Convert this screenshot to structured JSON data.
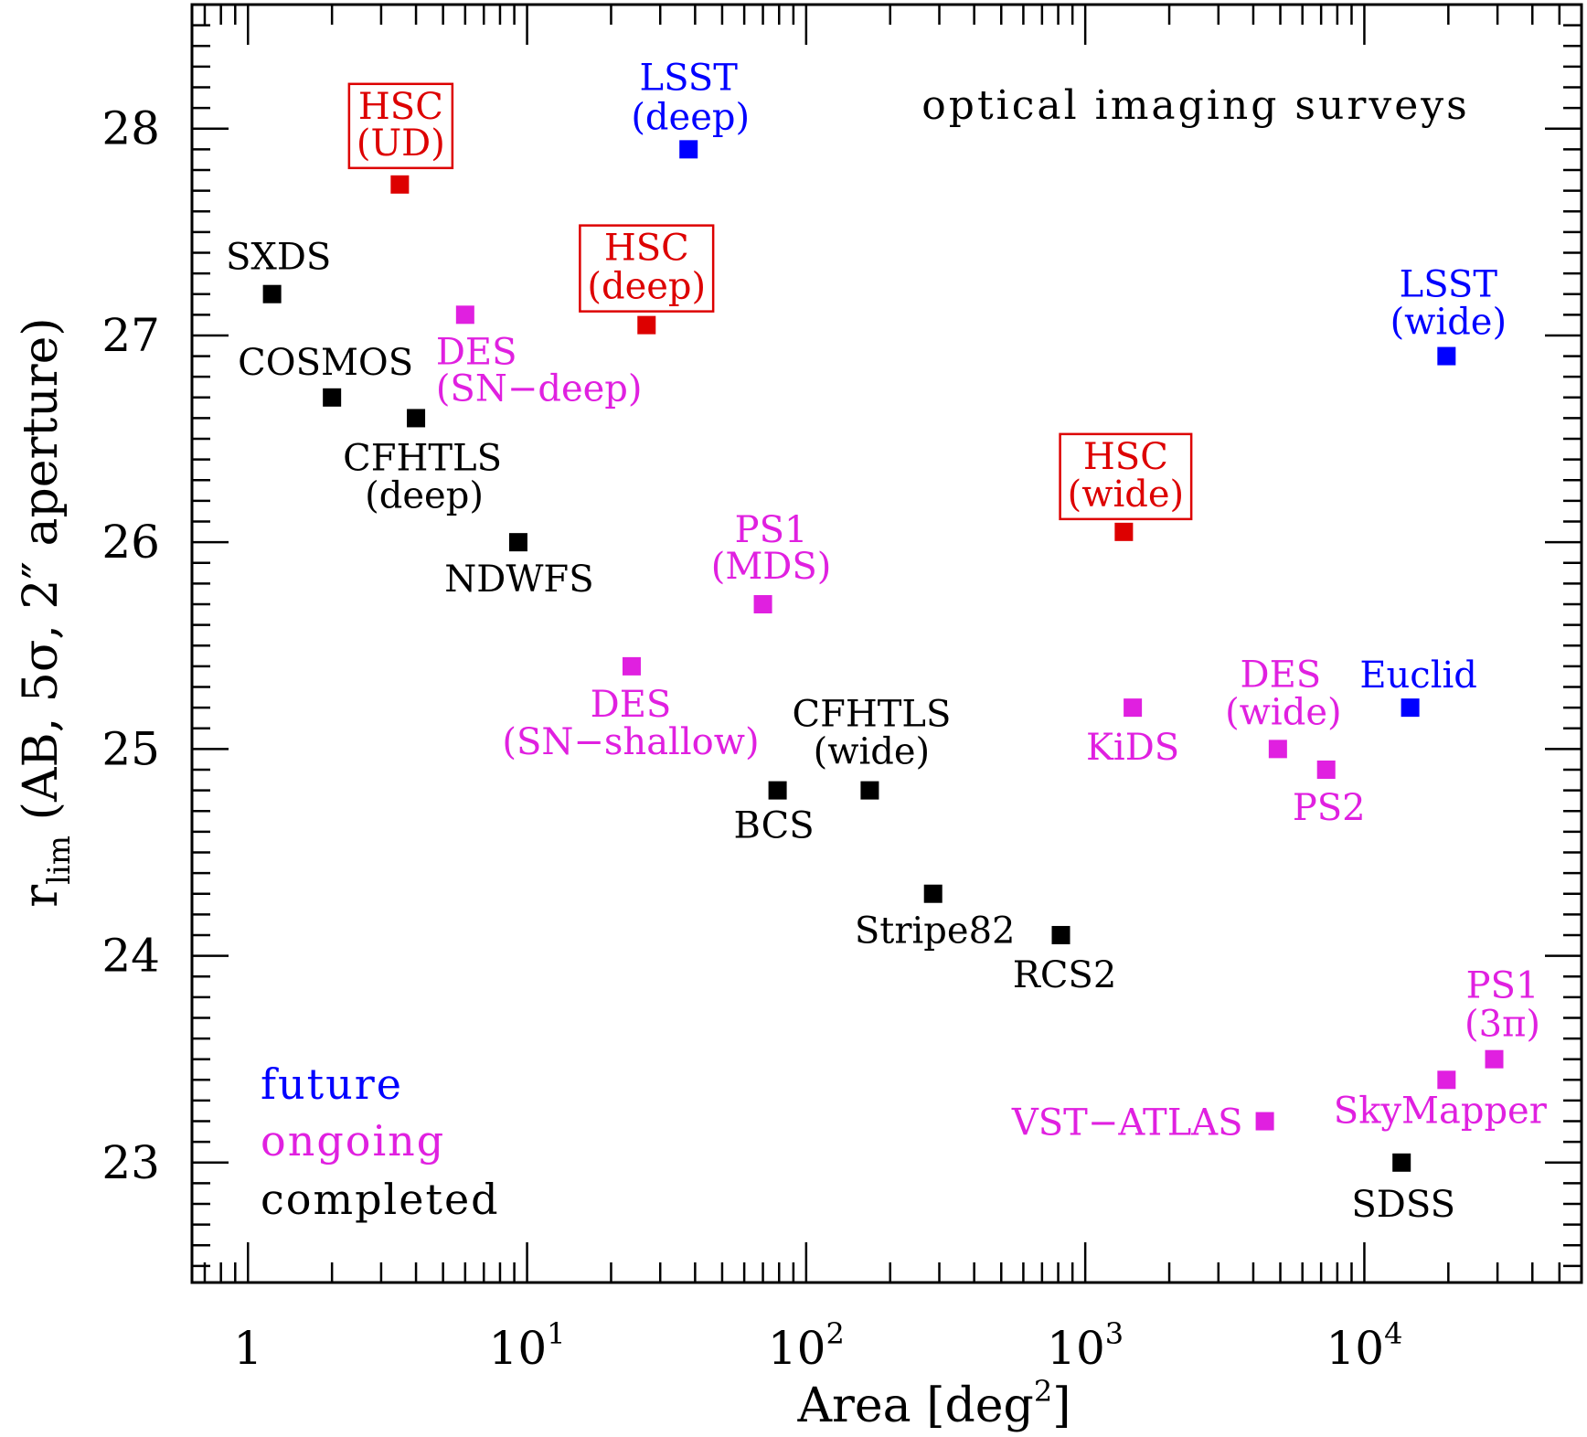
{
  "chart_data": {
    "type": "scatter",
    "title": "optical imaging surveys",
    "xlabel": "Area [deg²]",
    "xlabel_main": "Area [deg",
    "xlabel_sup": "2",
    "xlabel_end": "]",
    "ylabel": "r_lim (AB, 5σ, 2″ aperture)",
    "ylabel_r": "r",
    "ylabel_sub": "lim",
    "ylabel_rest": " (AB, 5σ, 2″ aperture)",
    "xscale": "log",
    "xlim": [
      0.63,
      60000
    ],
    "ylim": [
      22.42,
      28.6
    ],
    "xticks": [
      {
        "value": 1,
        "base": "1",
        "exp": ""
      },
      {
        "value": 10,
        "base": "10",
        "exp": "1"
      },
      {
        "value": 100,
        "base": "10",
        "exp": "2"
      },
      {
        "value": 1000,
        "base": "10",
        "exp": "3"
      },
      {
        "value": 10000,
        "base": "10",
        "exp": "4"
      }
    ],
    "yticks": [
      23,
      24,
      25,
      26,
      27,
      28
    ],
    "grid": false,
    "colors": {
      "future": "#0000ff",
      "ongoing": "#e020e0",
      "completed": "#000000",
      "hsc": "#dd0000"
    },
    "legend": {
      "placement": "bottom-left",
      "entries": [
        {
          "label": "future",
          "status": "future"
        },
        {
          "label": "ongoing",
          "status": "ongoing"
        },
        {
          "label": "completed",
          "status": "completed"
        }
      ]
    },
    "points": [
      {
        "label": [
          "SXDS"
        ],
        "x": 1.22,
        "y": 27.2,
        "status": "completed"
      },
      {
        "label": [
          "COSMOS"
        ],
        "x": 2.0,
        "y": 26.7,
        "status": "completed"
      },
      {
        "label": [
          "CFHTLS",
          "(deep)"
        ],
        "x": 4.0,
        "y": 26.6,
        "status": "completed"
      },
      {
        "label": [
          "NDWFS"
        ],
        "x": 9.3,
        "y": 26.0,
        "status": "completed"
      },
      {
        "label": [
          "BCS"
        ],
        "x": 79,
        "y": 24.8,
        "status": "completed"
      },
      {
        "label": [
          "CFHTLS",
          "(wide)"
        ],
        "x": 169,
        "y": 24.8,
        "status": "completed"
      },
      {
        "label": [
          "Stripe82"
        ],
        "x": 285,
        "y": 24.3,
        "status": "completed"
      },
      {
        "label": [
          "RCS2"
        ],
        "x": 818,
        "y": 24.1,
        "status": "completed"
      },
      {
        "label": [
          "SDSS"
        ],
        "x": 13600,
        "y": 23.0,
        "status": "completed"
      },
      {
        "label": [
          "DES",
          "(SN−deep)"
        ],
        "x": 6.0,
        "y": 27.1,
        "status": "ongoing"
      },
      {
        "label": [
          "DES",
          "(SN−shallow)"
        ],
        "x": 23.7,
        "y": 25.4,
        "status": "ongoing"
      },
      {
        "label": [
          "PS1",
          "(MDS)"
        ],
        "x": 70,
        "y": 25.7,
        "status": "ongoing"
      },
      {
        "label": [
          "KiDS"
        ],
        "x": 1480,
        "y": 25.2,
        "status": "ongoing"
      },
      {
        "label": [
          "DES",
          "(wide)"
        ],
        "x": 4900,
        "y": 25.0,
        "status": "ongoing"
      },
      {
        "label": [
          "PS2"
        ],
        "x": 7300,
        "y": 24.9,
        "status": "ongoing"
      },
      {
        "label": [
          "VST−ATLAS"
        ],
        "x": 4400,
        "y": 23.2,
        "status": "ongoing"
      },
      {
        "label": [
          "SkyMapper"
        ],
        "x": 19700,
        "y": 23.4,
        "status": "ongoing"
      },
      {
        "label": [
          "PS1",
          "(3π)"
        ],
        "x": 29200,
        "y": 23.5,
        "status": "ongoing"
      },
      {
        "label": [
          "HSC",
          "(UD)"
        ],
        "x": 3.5,
        "y": 27.73,
        "status": "hsc"
      },
      {
        "label": [
          "HSC",
          "(deep)"
        ],
        "x": 26.8,
        "y": 27.05,
        "status": "hsc"
      },
      {
        "label": [
          "HSC",
          "(wide)"
        ],
        "x": 1375,
        "y": 26.05,
        "status": "hsc"
      },
      {
        "label": [
          "LSST",
          "(deep)"
        ],
        "x": 37.9,
        "y": 27.9,
        "status": "future"
      },
      {
        "label": [
          "LSST",
          "(wide)"
        ],
        "x": 19700,
        "y": 26.9,
        "status": "future"
      },
      {
        "label": [
          "Euclid"
        ],
        "x": 14600,
        "y": 25.2,
        "status": "future"
      }
    ]
  }
}
